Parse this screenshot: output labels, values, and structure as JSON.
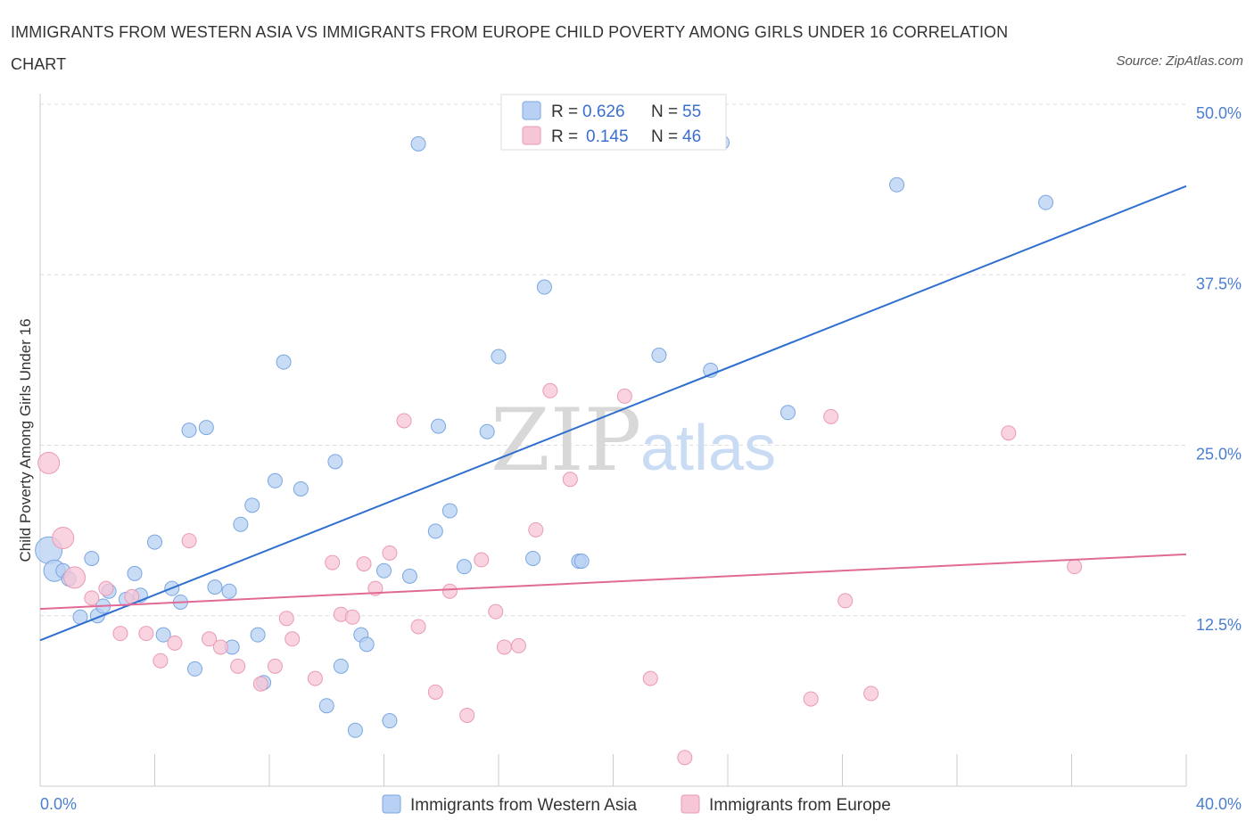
{
  "title": "IMMIGRANTS FROM WESTERN ASIA VS IMMIGRANTS FROM EUROPE CHILD POVERTY AMONG GIRLS UNDER 16 CORRELATION CHART",
  "source": "Source: ZipAtlas.com",
  "watermark": {
    "zip": "ZIP",
    "atlas": "atlas"
  },
  "colors": {
    "blue_fill": "#b7d0f3",
    "blue_stroke": "#7aa6e2",
    "blue_line": "#2f6fcf",
    "pink_fill": "#f7c6d6",
    "pink_stroke": "#e99ab5",
    "pink_line": "#e16a94",
    "tick_color": "#4a7fd0",
    "grid": "#dddddd"
  },
  "legend": {
    "rows": [
      {
        "r_label": "R =",
        "r_value": "0.626",
        "n_label": "N =",
        "n_value": "55"
      },
      {
        "r_label": "R =",
        "r_value": "0.145",
        "n_label": "N =",
        "n_value": "46"
      }
    ]
  },
  "chart_data": {
    "type": "scatter",
    "ylabel": "Child Poverty Among Girls Under 16",
    "xlim": [
      0,
      40
    ],
    "ylim": [
      0,
      50
    ],
    "x_tick_labels": [
      {
        "value": 0,
        "label": "0.0%"
      },
      {
        "value": 40,
        "label": "40.0%"
      }
    ],
    "y_tick_labels": [
      {
        "value": 12.5,
        "label": "12.5%"
      },
      {
        "value": 25,
        "label": "25.0%"
      },
      {
        "value": 37.5,
        "label": "37.5%"
      },
      {
        "value": 50,
        "label": "50.0%"
      }
    ],
    "grid": "horizontal dashed",
    "legend_position": "top-center",
    "series": [
      {
        "name": "Immigrants from Western Asia",
        "color": "#b7d0f3",
        "trend": {
          "x": [
            0,
            40
          ],
          "y": [
            10.7,
            44.0
          ]
        },
        "points": [
          {
            "x": 0.3,
            "y": 17.3,
            "s": 3
          },
          {
            "x": 0.5,
            "y": 15.8,
            "s": 2
          },
          {
            "x": 0.8,
            "y": 15.8,
            "s": 1
          },
          {
            "x": 1.0,
            "y": 15.2,
            "s": 1
          },
          {
            "x": 1.8,
            "y": 16.7,
            "s": 1
          },
          {
            "x": 1.4,
            "y": 12.4,
            "s": 1
          },
          {
            "x": 2.0,
            "y": 12.5,
            "s": 1
          },
          {
            "x": 2.2,
            "y": 13.2,
            "s": 1
          },
          {
            "x": 2.4,
            "y": 14.3,
            "s": 1
          },
          {
            "x": 3.0,
            "y": 13.7,
            "s": 1
          },
          {
            "x": 3.5,
            "y": 14.0,
            "s": 1
          },
          {
            "x": 3.3,
            "y": 15.6,
            "s": 1
          },
          {
            "x": 4.0,
            "y": 17.9,
            "s": 1
          },
          {
            "x": 4.3,
            "y": 11.1,
            "s": 1
          },
          {
            "x": 4.6,
            "y": 14.5,
            "s": 1
          },
          {
            "x": 4.9,
            "y": 13.5,
            "s": 1
          },
          {
            "x": 5.2,
            "y": 26.1,
            "s": 1
          },
          {
            "x": 5.4,
            "y": 8.6,
            "s": 1
          },
          {
            "x": 5.8,
            "y": 26.3,
            "s": 1
          },
          {
            "x": 6.1,
            "y": 14.6,
            "s": 1
          },
          {
            "x": 6.6,
            "y": 14.3,
            "s": 1
          },
          {
            "x": 6.7,
            "y": 10.2,
            "s": 1
          },
          {
            "x": 7.0,
            "y": 19.2,
            "s": 1
          },
          {
            "x": 7.4,
            "y": 20.6,
            "s": 1
          },
          {
            "x": 7.6,
            "y": 11.1,
            "s": 1
          },
          {
            "x": 7.8,
            "y": 7.6,
            "s": 1
          },
          {
            "x": 8.2,
            "y": 22.4,
            "s": 1
          },
          {
            "x": 8.5,
            "y": 31.1,
            "s": 1
          },
          {
            "x": 9.1,
            "y": 21.8,
            "s": 1
          },
          {
            "x": 10.0,
            "y": 5.9,
            "s": 1
          },
          {
            "x": 10.3,
            "y": 23.8,
            "s": 1
          },
          {
            "x": 10.5,
            "y": 8.8,
            "s": 1
          },
          {
            "x": 11.0,
            "y": 4.1,
            "s": 1
          },
          {
            "x": 11.2,
            "y": 11.1,
            "s": 1
          },
          {
            "x": 11.4,
            "y": 10.4,
            "s": 1
          },
          {
            "x": 12.0,
            "y": 15.8,
            "s": 1
          },
          {
            "x": 12.2,
            "y": 4.8,
            "s": 1
          },
          {
            "x": 12.9,
            "y": 15.4,
            "s": 1
          },
          {
            "x": 13.2,
            "y": 47.1,
            "s": 1
          },
          {
            "x": 13.8,
            "y": 18.7,
            "s": 1
          },
          {
            "x": 13.9,
            "y": 26.4,
            "s": 1
          },
          {
            "x": 14.3,
            "y": 20.2,
            "s": 1
          },
          {
            "x": 14.8,
            "y": 16.1,
            "s": 1
          },
          {
            "x": 15.6,
            "y": 26.0,
            "s": 1
          },
          {
            "x": 16.0,
            "y": 31.5,
            "s": 1
          },
          {
            "x": 17.2,
            "y": 16.7,
            "s": 1
          },
          {
            "x": 17.6,
            "y": 36.6,
            "s": 1
          },
          {
            "x": 18.8,
            "y": 16.5,
            "s": 1
          },
          {
            "x": 18.9,
            "y": 16.5,
            "s": 1
          },
          {
            "x": 21.6,
            "y": 31.6,
            "s": 1
          },
          {
            "x": 23.4,
            "y": 30.5,
            "s": 1
          },
          {
            "x": 23.8,
            "y": 47.2,
            "s": 1
          },
          {
            "x": 26.1,
            "y": 27.4,
            "s": 1
          },
          {
            "x": 29.9,
            "y": 44.1,
            "s": 1
          },
          {
            "x": 35.1,
            "y": 42.8,
            "s": 1
          }
        ]
      },
      {
        "name": "Immigrants from Europe",
        "color": "#f7c6d6",
        "trend": {
          "x": [
            0,
            40
          ],
          "y": [
            13.0,
            17.0
          ]
        },
        "points": [
          {
            "x": 0.3,
            "y": 23.7,
            "s": 2
          },
          {
            "x": 0.8,
            "y": 18.2,
            "s": 2
          },
          {
            "x": 1.2,
            "y": 15.3,
            "s": 2
          },
          {
            "x": 1.8,
            "y": 13.8,
            "s": 1
          },
          {
            "x": 2.3,
            "y": 14.5,
            "s": 1
          },
          {
            "x": 2.8,
            "y": 11.2,
            "s": 1
          },
          {
            "x": 3.2,
            "y": 13.9,
            "s": 1
          },
          {
            "x": 3.7,
            "y": 11.2,
            "s": 1
          },
          {
            "x": 4.2,
            "y": 9.2,
            "s": 1
          },
          {
            "x": 4.7,
            "y": 10.5,
            "s": 1
          },
          {
            "x": 5.2,
            "y": 18.0,
            "s": 1
          },
          {
            "x": 5.9,
            "y": 10.8,
            "s": 1
          },
          {
            "x": 6.3,
            "y": 10.2,
            "s": 1
          },
          {
            "x": 6.9,
            "y": 8.8,
            "s": 1
          },
          {
            "x": 7.7,
            "y": 7.5,
            "s": 1
          },
          {
            "x": 8.2,
            "y": 8.8,
            "s": 1
          },
          {
            "x": 8.6,
            "y": 12.3,
            "s": 1
          },
          {
            "x": 8.8,
            "y": 10.8,
            "s": 1
          },
          {
            "x": 9.6,
            "y": 7.9,
            "s": 1
          },
          {
            "x": 10.2,
            "y": 16.4,
            "s": 1
          },
          {
            "x": 10.5,
            "y": 12.6,
            "s": 1
          },
          {
            "x": 10.9,
            "y": 12.4,
            "s": 1
          },
          {
            "x": 11.3,
            "y": 16.3,
            "s": 1
          },
          {
            "x": 11.7,
            "y": 14.5,
            "s": 1
          },
          {
            "x": 12.2,
            "y": 17.1,
            "s": 1
          },
          {
            "x": 12.7,
            "y": 26.8,
            "s": 1
          },
          {
            "x": 13.2,
            "y": 11.7,
            "s": 1
          },
          {
            "x": 13.8,
            "y": 6.9,
            "s": 1
          },
          {
            "x": 14.3,
            "y": 14.3,
            "s": 1
          },
          {
            "x": 14.9,
            "y": 5.2,
            "s": 1
          },
          {
            "x": 15.4,
            "y": 16.6,
            "s": 1
          },
          {
            "x": 15.9,
            "y": 12.8,
            "s": 1
          },
          {
            "x": 16.2,
            "y": 10.2,
            "s": 1
          },
          {
            "x": 16.7,
            "y": 10.3,
            "s": 1
          },
          {
            "x": 17.3,
            "y": 18.8,
            "s": 1
          },
          {
            "x": 17.8,
            "y": 29.0,
            "s": 1
          },
          {
            "x": 18.5,
            "y": 22.5,
            "s": 1
          },
          {
            "x": 20.4,
            "y": 28.6,
            "s": 1
          },
          {
            "x": 21.3,
            "y": 7.9,
            "s": 1
          },
          {
            "x": 22.5,
            "y": 2.1,
            "s": 1
          },
          {
            "x": 26.9,
            "y": 6.4,
            "s": 1
          },
          {
            "x": 27.6,
            "y": 27.1,
            "s": 1
          },
          {
            "x": 28.1,
            "y": 13.6,
            "s": 1
          },
          {
            "x": 29.0,
            "y": 6.8,
            "s": 1
          },
          {
            "x": 33.8,
            "y": 25.9,
            "s": 1
          },
          {
            "x": 36.1,
            "y": 16.1,
            "s": 1
          }
        ]
      }
    ]
  }
}
